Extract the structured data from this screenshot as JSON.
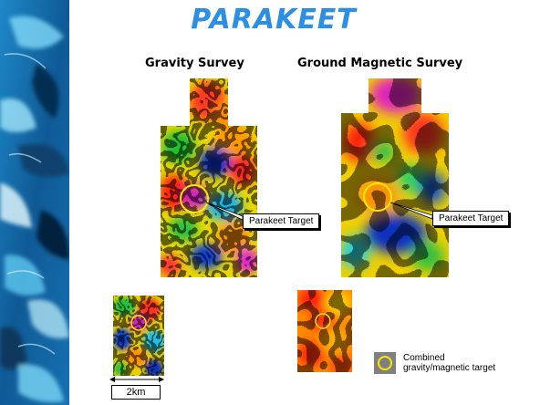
{
  "title": "PARAKEET",
  "gravity_survey": {
    "heading": "Gravity Survey",
    "target_label": "Parakeet Target"
  },
  "magnetic_survey": {
    "heading": "Ground Magnetic Survey",
    "target_label": "Parakeet Target"
  },
  "legend": {
    "line1": "Combined",
    "line2": "gravity/magnetic target"
  },
  "scale": {
    "label": "2km"
  },
  "colors": {
    "title": "#2a8fe6",
    "target_ring": "#ffe800",
    "legend_swatch": "#808080"
  }
}
